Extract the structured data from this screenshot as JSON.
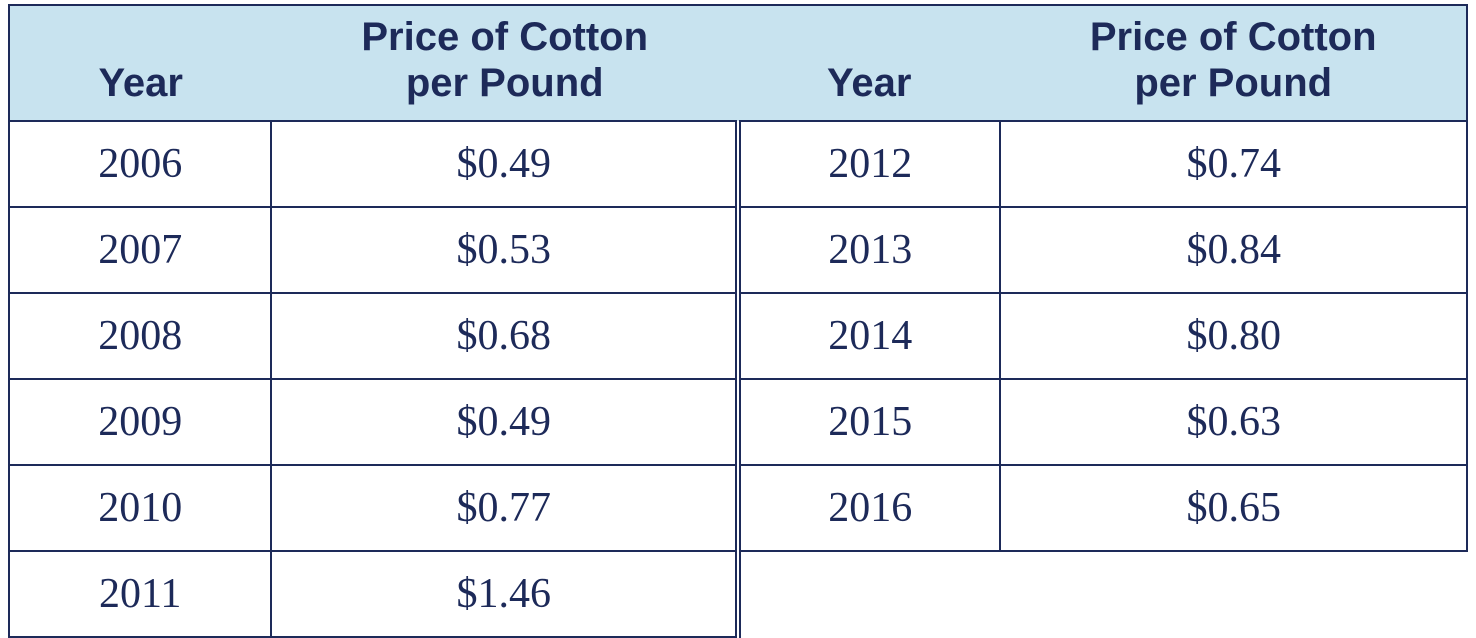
{
  "table": {
    "header_bg": "#c8e3ef",
    "text_color": "#1d2a59",
    "border_color": "#1d2a59",
    "columns": {
      "year_label": "Year",
      "price_label_line1": "Price of Cotton",
      "price_label_line2": "per Pound"
    },
    "left_rows": [
      {
        "year": "2006",
        "price": "$0.49"
      },
      {
        "year": "2007",
        "price": "$0.53"
      },
      {
        "year": "2008",
        "price": "$0.68"
      },
      {
        "year": "2009",
        "price": "$0.49"
      },
      {
        "year": "2010",
        "price": "$0.77"
      },
      {
        "year": "2011",
        "price": "$1.46"
      }
    ],
    "right_rows": [
      {
        "year": "2012",
        "price": "$0.74"
      },
      {
        "year": "2013",
        "price": "$0.84"
      },
      {
        "year": "2014",
        "price": "$0.80"
      },
      {
        "year": "2015",
        "price": "$0.63"
      },
      {
        "year": "2016",
        "price": "$0.65"
      }
    ],
    "header_font_family": "Arial Narrow",
    "header_font_size_pt": 30,
    "body_font_family": "Times New Roman",
    "body_font_size_pt": 32
  }
}
